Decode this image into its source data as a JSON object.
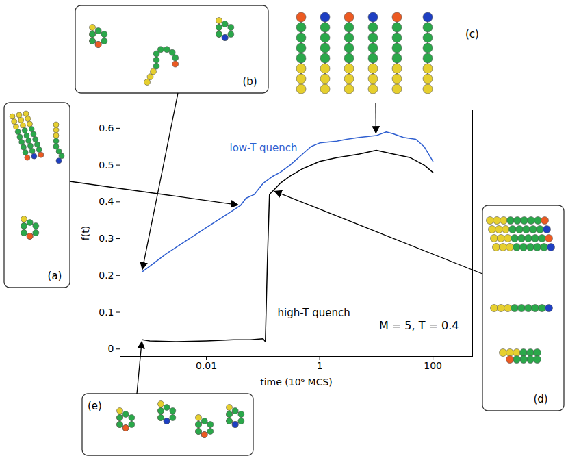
{
  "chart_data": {
    "type": "line",
    "xlabel": "time (10⁶ MCS)",
    "ylabel": "f(t)",
    "log": "x",
    "xlim": [
      0.0003,
      500
    ],
    "ylim": [
      -0.02,
      0.65
    ],
    "xticks": [
      0.01,
      1,
      100
    ],
    "yticks": [
      0,
      0.1,
      0.2,
      0.3,
      0.4,
      0.5,
      0.6
    ],
    "series": [
      {
        "name": "low-T quench",
        "color": "#2f5fd0",
        "x": [
          0.00074,
          0.001,
          0.002,
          0.005,
          0.01,
          0.02,
          0.04,
          0.05,
          0.07,
          0.1,
          0.15,
          0.2,
          0.3,
          0.5,
          0.7,
          1,
          2,
          3,
          5,
          10,
          15,
          20,
          30,
          50,
          70,
          100
        ],
        "values": [
          0.21,
          0.225,
          0.26,
          0.3,
          0.33,
          0.36,
          0.39,
          0.41,
          0.42,
          0.45,
          0.47,
          0.48,
          0.5,
          0.53,
          0.55,
          0.56,
          0.565,
          0.57,
          0.575,
          0.58,
          0.59,
          0.585,
          0.575,
          0.57,
          0.55,
          0.51
        ]
      },
      {
        "name": "high-T quench",
        "color": "#000000",
        "x": [
          0.00074,
          0.001,
          0.003,
          0.01,
          0.03,
          0.06,
          0.1,
          0.11,
          0.12,
          0.13,
          0.15,
          0.2,
          0.3,
          0.5,
          1,
          2,
          5,
          10,
          20,
          40,
          70,
          100
        ],
        "values": [
          0.025,
          0.022,
          0.02,
          0.022,
          0.025,
          0.025,
          0.028,
          0.02,
          0.25,
          0.42,
          0.43,
          0.45,
          0.47,
          0.49,
          0.51,
          0.52,
          0.53,
          0.54,
          0.53,
          0.52,
          0.5,
          0.48
        ]
      }
    ],
    "annotations": [
      "M = 5, T = 0.4"
    ],
    "panels": [
      "(a)",
      "(b)",
      "(c)",
      "(d)",
      "(e)"
    ]
  }
}
